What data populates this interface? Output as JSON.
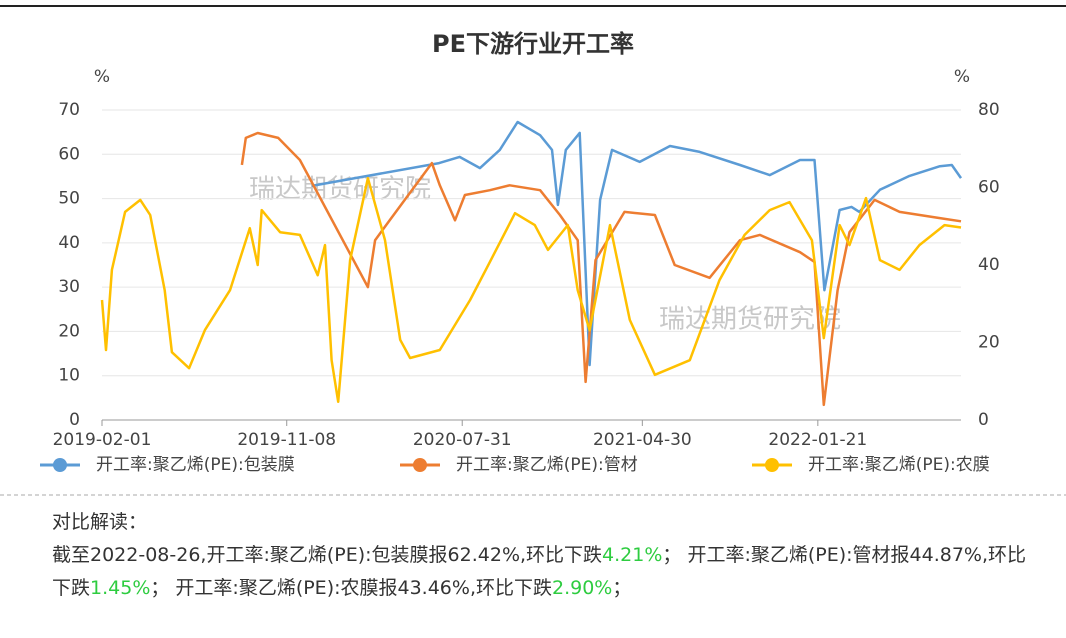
{
  "chart_data": {
    "type": "line",
    "title": "PE下游行业开工率",
    "y_unit": "%",
    "y2_unit": "%",
    "watermarks": [
      "瑞达期货研究院",
      "瑞达期货研究院"
    ],
    "xlim": [
      "2019-02-01",
      "2022-08-26"
    ],
    "xticks": [
      "2019-02-01",
      "2019-11-08",
      "2020-07-31",
      "2021-04-30",
      "2022-01-21"
    ],
    "ylim": [
      0,
      70
    ],
    "yticks": [
      0,
      10,
      20,
      30,
      40,
      50,
      60,
      70
    ],
    "y2lim": [
      0,
      80
    ],
    "y2ticks": [
      0,
      20,
      40,
      60,
      80
    ],
    "grid": true,
    "series": [
      {
        "name": "开工率:聚乙烯(PE):包装膜",
        "color": "#5b9bd5",
        "axis": "y2",
        "x": [
          "2019-12-16",
          "2020-06-26",
          "2020-07-27",
          "2020-08-27",
          "2020-09-26",
          "2020-10-23",
          "2020-11-26",
          "2020-12-14",
          "2020-12-23",
          "2021-01-04",
          "2021-01-25",
          "2021-02-09",
          "2021-02-25",
          "2021-03-15",
          "2021-04-26",
          "2021-06-11",
          "2021-07-26",
          "2021-09-25",
          "2021-11-09",
          "2021-12-25",
          "2022-01-16",
          "2022-01-31",
          "2022-02-23",
          "2022-03-13",
          "2022-03-25",
          "2022-04-25",
          "2022-06-09",
          "2022-07-25",
          "2022-08-12",
          "2022-08-26"
        ],
        "values": [
          60.4,
          66.3,
          67.9,
          65.0,
          69.7,
          76.9,
          73.5,
          69.7,
          55.5,
          69.7,
          74.1,
          14.2,
          56.8,
          69.7,
          66.6,
          70.7,
          69.2,
          65.8,
          63.2,
          67.1,
          67.1,
          33.5,
          54.2,
          55.0,
          53.7,
          59.4,
          63.0,
          65.5,
          65.8,
          62.42
        ]
      },
      {
        "name": "开工率:聚乙烯(PE):管材",
        "color": "#ed7d31",
        "x": [
          "2019-09-01",
          "2019-09-07",
          "2019-09-25",
          "2019-10-26",
          "2019-11-28",
          "2020-03-10",
          "2020-03-21",
          "2020-04-12",
          "2020-06-15",
          "2020-06-27",
          "2020-07-20",
          "2020-08-04",
          "2020-09-11",
          "2020-10-11",
          "2020-11-26",
          "2020-12-26",
          "2021-01-22",
          "2021-02-03",
          "2021-02-18",
          "2021-04-03",
          "2021-05-19",
          "2021-06-18",
          "2021-08-10",
          "2021-09-25",
          "2021-10-25",
          "2021-12-25",
          "2022-01-16",
          "2022-01-30",
          "2022-02-20",
          "2022-03-10",
          "2022-04-17",
          "2022-05-25",
          "2022-07-25",
          "2022-08-26"
        ],
        "values": [
          57.6,
          63.7,
          64.8,
          63.7,
          58.7,
          30.0,
          40.6,
          45.1,
          58.0,
          53.0,
          45.1,
          50.8,
          51.9,
          53.0,
          51.9,
          46.3,
          40.6,
          8.6,
          36.1,
          47.0,
          46.3,
          35.0,
          32.1,
          40.6,
          41.8,
          37.9,
          35.7,
          3.4,
          29.3,
          42.4,
          49.7,
          47.0,
          45.6,
          44.87
        ]
      },
      {
        "name": "开工率:聚乙烯(PE):农膜",
        "color": "#ffc000",
        "x": [
          "2019-02-01",
          "2019-02-07",
          "2019-02-16",
          "2019-03-08",
          "2019-03-31",
          "2019-04-15",
          "2019-05-07",
          "2019-05-18",
          "2019-06-13",
          "2019-07-07",
          "2019-08-14",
          "2019-09-13",
          "2019-09-25",
          "2019-10-01",
          "2019-10-29",
          "2019-11-28",
          "2019-12-25",
          "2020-01-05",
          "2020-01-15",
          "2020-01-25",
          "2020-02-12",
          "2020-03-10",
          "2020-04-05",
          "2020-04-28",
          "2020-05-13",
          "2020-06-27",
          "2020-08-12",
          "2020-09-11",
          "2020-10-19",
          "2020-11-18",
          "2020-12-08",
          "2021-01-07",
          "2021-01-22",
          "2021-02-09",
          "2021-03-12",
          "2021-04-11",
          "2021-05-19",
          "2021-07-11",
          "2021-08-25",
          "2021-10-02",
          "2021-11-09",
          "2021-12-09",
          "2022-01-12",
          "2022-01-30",
          "2022-02-23",
          "2022-03-10",
          "2022-04-04",
          "2022-04-25",
          "2022-05-25",
          "2022-06-24",
          "2022-08-01",
          "2022-08-26"
        ],
        "values": [
          27.1,
          15.8,
          33.9,
          47.0,
          49.7,
          46.3,
          29.3,
          15.3,
          11.7,
          20.3,
          29.3,
          43.3,
          35.0,
          47.4,
          42.4,
          41.8,
          32.7,
          39.5,
          13.5,
          4.1,
          36.1,
          54.6,
          40.6,
          18.1,
          14.0,
          15.8,
          27.1,
          35.7,
          46.7,
          44.0,
          38.4,
          44.0,
          29.3,
          20.3,
          44.0,
          22.6,
          10.2,
          13.5,
          31.6,
          41.8,
          47.4,
          49.2,
          40.6,
          18.5,
          44.0,
          39.5,
          50.1,
          36.1,
          33.9,
          39.5,
          44.0,
          43.46
        ]
      }
    ]
  },
  "analysis": {
    "title": "对比解读：",
    "segments": [
      {
        "text": "截至2022-08-26,开工率:聚乙烯(PE):包装膜报62.42%,环比下跌",
        "highlight": false
      },
      {
        "text": "4.21%",
        "highlight": true
      },
      {
        "text": "； 开工率:聚乙烯(PE):管材报44.87%,环比下跌",
        "highlight": false
      },
      {
        "text": "1.45%",
        "highlight": true
      },
      {
        "text": "； 开工率:聚乙烯(PE):农膜报43.46%,环比下跌",
        "highlight": false
      },
      {
        "text": "2.90%",
        "highlight": true
      },
      {
        "text": "；",
        "highlight": false
      }
    ]
  }
}
